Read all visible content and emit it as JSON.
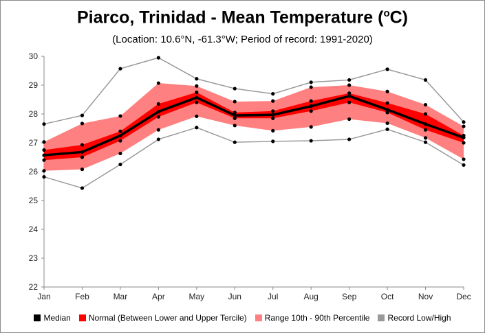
{
  "title": {
    "main": "Piarco, Trinidad - Mean Temperature (",
    "sup": "o",
    "end": "C)"
  },
  "subtitle": "(Location: 10.6°N, -61.3°W; Period of record: 1991-2020)",
  "colors": {
    "median": "#000000",
    "normal": "#ff0000",
    "range": "#ff8080",
    "record": "#999999"
  },
  "legend": [
    {
      "label": "Median",
      "color": "#000000"
    },
    {
      "label": "Normal (Between Lower and Upper Tercile)",
      "color": "#ff0000"
    },
    {
      "label": "Range 10th - 90th Percentile",
      "color": "#ff8080"
    },
    {
      "label": "Record Low/High",
      "color": "#999999"
    }
  ],
  "chart_data": {
    "type": "area",
    "categories": [
      "Jan",
      "Feb",
      "Mar",
      "Apr",
      "May",
      "Jun",
      "Jul",
      "Aug",
      "Sep",
      "Oct",
      "Nov",
      "Dec"
    ],
    "ylim": [
      22,
      30
    ],
    "yticks": [
      22,
      23,
      24,
      25,
      26,
      27,
      28,
      29,
      30
    ],
    "grid": false,
    "legend_position": "bottom",
    "series": [
      {
        "name": "Median",
        "values": [
          26.57,
          26.68,
          27.25,
          28.08,
          28.57,
          27.95,
          27.97,
          28.27,
          28.62,
          28.15,
          27.65,
          27.18
        ]
      },
      {
        "name": "Normal (Between Lower and Upper Tercile)",
        "lower": [
          26.4,
          26.5,
          27.07,
          27.9,
          28.4,
          27.85,
          27.85,
          28.1,
          28.4,
          28.05,
          27.45,
          27.0
        ],
        "upper": [
          26.75,
          26.93,
          27.4,
          28.35,
          28.75,
          28.05,
          28.1,
          28.45,
          28.72,
          28.38,
          28.0,
          27.25
        ]
      },
      {
        "name": "Range 10th - 90th Percentile",
        "lower": [
          26.03,
          26.08,
          26.63,
          27.45,
          27.92,
          27.6,
          27.42,
          27.55,
          27.82,
          27.68,
          27.17,
          26.43
        ],
        "upper": [
          27.03,
          27.67,
          27.93,
          29.07,
          28.97,
          28.43,
          28.45,
          28.93,
          29.0,
          28.78,
          28.32,
          27.57
        ]
      },
      {
        "name": "Record Low/High",
        "lower": [
          25.82,
          25.43,
          26.25,
          27.12,
          27.53,
          27.02,
          27.05,
          27.07,
          27.12,
          27.47,
          27.02,
          26.23
        ],
        "upper": [
          27.65,
          27.95,
          29.57,
          29.95,
          29.22,
          28.88,
          28.7,
          29.1,
          29.18,
          29.55,
          29.18,
          27.72
        ]
      }
    ]
  }
}
